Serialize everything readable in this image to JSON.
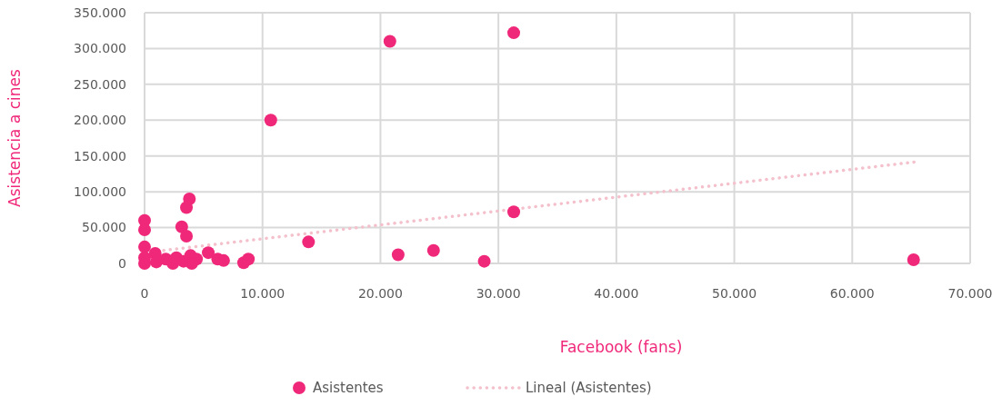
{
  "chart_data": {
    "type": "scatter",
    "xlabel": "Facebook (fans)",
    "ylabel": "Asistencia a cines",
    "xlim": [
      0,
      70000
    ],
    "ylim": [
      0,
      350000
    ],
    "xticks": [
      0,
      {
        "value": 10000,
        "label": "10.000"
      },
      {
        "value": 20000,
        "label": "20.000"
      },
      {
        "value": 30000,
        "label": "30.000"
      },
      {
        "value": 40000,
        "label": "40.000"
      },
      {
        "value": 50000,
        "label": "50.000"
      },
      {
        "value": 60000,
        "label": "60.000"
      },
      {
        "value": 70000,
        "label": "70.000"
      }
    ],
    "yticks": [
      0,
      {
        "value": 50000,
        "label": "50.000"
      },
      {
        "value": 100000,
        "label": "100.000"
      },
      {
        "value": 150000,
        "label": "150.000"
      },
      {
        "value": 200000,
        "label": "200.000"
      },
      {
        "value": 250000,
        "label": "250.000"
      },
      {
        "value": 300000,
        "label": "300.000"
      },
      {
        "value": 350000,
        "label": "350.000"
      }
    ],
    "grid": true,
    "legend": "bottom",
    "marker": "circle",
    "series": [
      {
        "name": "Asistentes",
        "color": "#f0287a",
        "x": [
          20800,
          31300,
          10700,
          31300,
          13900,
          21500,
          24500,
          28800,
          65200,
          0,
          0,
          0,
          3150,
          3550,
          3550,
          3800,
          6200,
          6700,
          5400,
          8400,
          8800,
          0,
          0,
          900,
          1000,
          1800,
          2400,
          2700,
          3300,
          3900,
          4400,
          4000
        ],
        "values": [
          310000,
          322000,
          200000,
          72000,
          30000,
          12000,
          18000,
          3000,
          5000,
          60000,
          47000,
          23000,
          51000,
          38000,
          78000,
          90000,
          6000,
          4000,
          15000,
          1000,
          6000,
          8000,
          0,
          14000,
          2000,
          6000,
          0,
          8000,
          3000,
          11000,
          6000,
          0
        ]
      },
      {
        "name": "Lineal (Asistentes)",
        "type": "line",
        "color": "#f4c0cc",
        "line_style": "dotted",
        "marker": "none",
        "x": [
          0,
          65500
        ],
        "values": [
          15000,
          142000
        ]
      }
    ]
  }
}
